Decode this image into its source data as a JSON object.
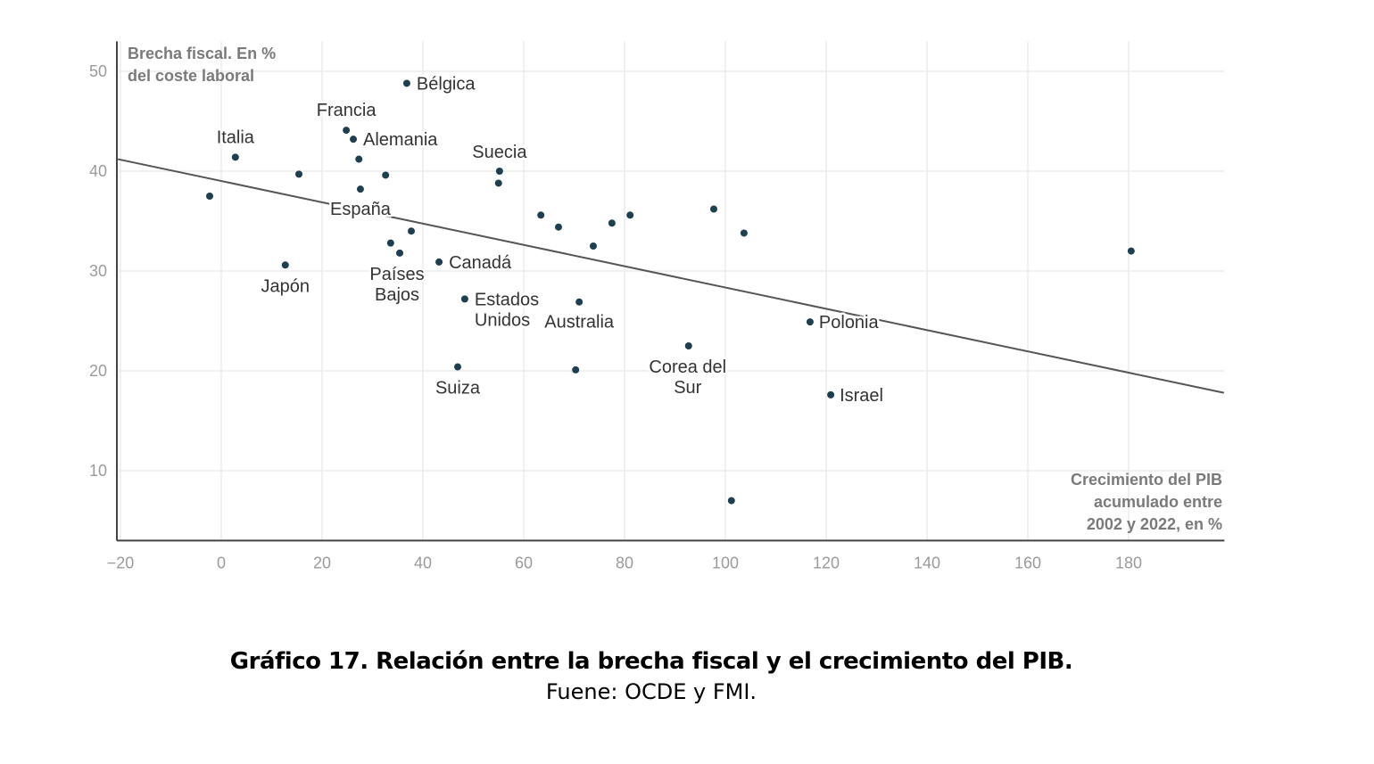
{
  "chart_data": {
    "type": "scatter",
    "ylabel": [
      "Brecha fiscal. En %",
      "del coste laboral"
    ],
    "xlabel": [
      "Crecimiento del PIB",
      "acumulado entre",
      "2002 y 2022, en %"
    ],
    "xlim": [
      -20,
      199
    ],
    "ylim": [
      3,
      53
    ],
    "xticks": [
      -20,
      0,
      20,
      40,
      60,
      80,
      100,
      120,
      140,
      160,
      180
    ],
    "yticks": [
      10,
      20,
      30,
      40,
      50
    ],
    "grid": true,
    "point_color": "#1d3f4f",
    "trendline": {
      "x": [
        -20.5,
        198.9
      ],
      "y": [
        41.2,
        17.8
      ],
      "color": "#555555"
    },
    "points": [
      {
        "x": 36.8,
        "y": 48.8,
        "label": "Bélgica"
      },
      {
        "x": 24.8,
        "y": 44.1,
        "label": "Francia"
      },
      {
        "x": 26.2,
        "y": 43.2,
        "label": "Alemania"
      },
      {
        "x": 2.8,
        "y": 41.4,
        "label": "Italia"
      },
      {
        "x": 27.6,
        "y": 38.2,
        "label": "España"
      },
      {
        "x": 55.2,
        "y": 40.0,
        "label": "Suecia"
      },
      {
        "x": 35.4,
        "y": 31.8,
        "label": "Países Bajos"
      },
      {
        "x": 12.7,
        "y": 30.6,
        "label": "Japón"
      },
      {
        "x": 43.2,
        "y": 30.9,
        "label": "Canadá"
      },
      {
        "x": 48.3,
        "y": 27.2,
        "label": "Estados Unidos"
      },
      {
        "x": 71.0,
        "y": 26.9,
        "label": "Australia"
      },
      {
        "x": 116.8,
        "y": 24.9,
        "label": "Polonia"
      },
      {
        "x": 92.7,
        "y": 22.5,
        "label": "Corea del Sur"
      },
      {
        "x": 46.9,
        "y": 20.4,
        "label": "Suiza"
      },
      {
        "x": 120.9,
        "y": 17.6,
        "label": "Israel"
      },
      {
        "x": 15.4,
        "y": 39.7
      },
      {
        "x": 27.3,
        "y": 41.2
      },
      {
        "x": 32.6,
        "y": 39.6
      },
      {
        "x": -2.3,
        "y": 37.5
      },
      {
        "x": 55.0,
        "y": 38.8
      },
      {
        "x": 37.7,
        "y": 34.0
      },
      {
        "x": 33.6,
        "y": 32.8
      },
      {
        "x": 63.4,
        "y": 35.6
      },
      {
        "x": 66.9,
        "y": 34.4
      },
      {
        "x": 73.8,
        "y": 32.5
      },
      {
        "x": 77.5,
        "y": 34.8
      },
      {
        "x": 81.1,
        "y": 35.6
      },
      {
        "x": 97.7,
        "y": 36.2
      },
      {
        "x": 103.7,
        "y": 33.8
      },
      {
        "x": 70.3,
        "y": 20.1
      },
      {
        "x": 101.2,
        "y": 7.0
      },
      {
        "x": 180.5,
        "y": 32.0
      }
    ]
  },
  "caption": {
    "title": "Gráfico 17. Relación entre la brecha fiscal y el crecimiento del PIB.",
    "source": "Fuene: OCDE y FMI."
  }
}
